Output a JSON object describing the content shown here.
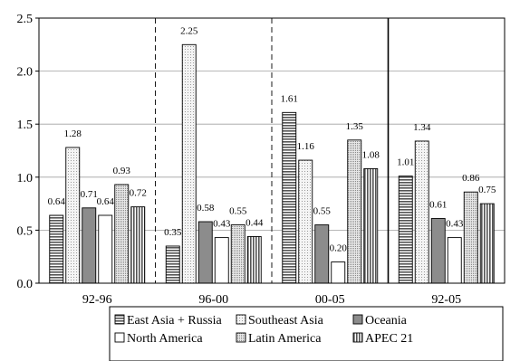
{
  "chart_data": {
    "type": "bar",
    "categories": [
      "92-96",
      "96-00",
      "00-05",
      "92-05"
    ],
    "series": [
      {
        "name": "East Asia + Russia",
        "values": [
          0.64,
          0.35,
          1.61,
          1.01
        ],
        "pattern": "hstripe"
      },
      {
        "name": "Southeast Asia",
        "values": [
          1.28,
          2.25,
          1.16,
          1.34
        ],
        "pattern": "dots-light"
      },
      {
        "name": "Oceania",
        "values": [
          0.71,
          0.58,
          0.55,
          0.61
        ],
        "pattern": "solid-gray"
      },
      {
        "name": "North America",
        "values": [
          0.64,
          0.43,
          0.2,
          0.43
        ],
        "pattern": "white"
      },
      {
        "name": "Latin America",
        "values": [
          0.93,
          0.55,
          1.35,
          0.86
        ],
        "pattern": "dots-dense"
      },
      {
        "name": "APEC 21",
        "values": [
          0.72,
          0.44,
          1.08,
          0.75
        ],
        "pattern": "vstripe"
      }
    ],
    "data_labels": [
      [
        "0.64",
        "1.28",
        "0.71",
        "0.64",
        "0.93",
        "0.72"
      ],
      [
        "0.35",
        "2.25",
        "0.58",
        "0.43",
        "0.55",
        "0.44"
      ],
      [
        "1.61",
        "1.16",
        "0.55",
        "0.20",
        "1.35",
        "1.08"
      ],
      [
        "1.01",
        "1.34",
        "0.61",
        "0.43",
        "0.86",
        "0.75"
      ]
    ],
    "y_ticks": [
      "0.0",
      "0.5",
      "1.0",
      "1.5",
      "2.0",
      "2.5"
    ],
    "ylim": [
      0,
      2.5
    ],
    "grid": true,
    "legend_position": "bottom",
    "separators": [
      {
        "after_category": 0,
        "style": "dashed"
      },
      {
        "after_category": 1,
        "style": "dashed"
      },
      {
        "after_category": 2,
        "style": "solid"
      }
    ],
    "colors": {
      "solid_gray": "#8c8c8c",
      "stripe": "#555555",
      "dots": "#a8a8a8",
      "grid": "#a0a0a0"
    }
  }
}
